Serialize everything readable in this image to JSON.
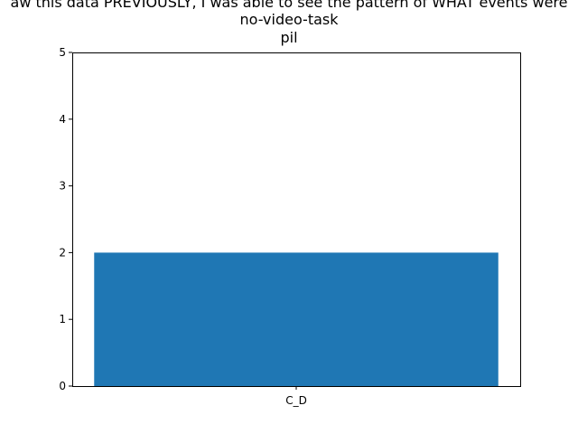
{
  "chart_data": {
    "type": "bar",
    "title_lines": [
      "aw this data PREVIOUSLY, I was able to see the pattern of WHAT events were",
      "no-video-task",
      "pil"
    ],
    "categories": [
      "C_D"
    ],
    "values": [
      2
    ],
    "ylim": [
      0,
      5
    ],
    "yticks": [
      "0",
      "1",
      "2",
      "3",
      "4",
      "5"
    ],
    "xlabel": "",
    "ylabel": "",
    "grid": false,
    "legend": "none",
    "colors": {
      "bar": "#1f77b4",
      "axis": "#000000",
      "background": "#ffffff"
    }
  }
}
